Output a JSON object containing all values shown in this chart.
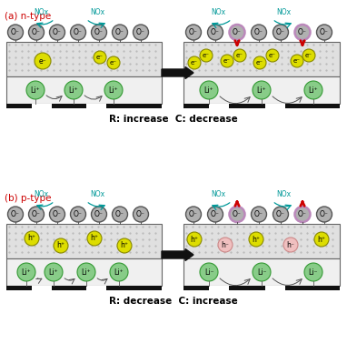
{
  "title_a": "(a) n-type",
  "title_b": "(b) p-type",
  "caption_a": "R: increase  C: decrease",
  "caption_b": "R: decrease  C: increase",
  "nox_color": "#009999",
  "o_circle_fc": "#b0b0b0",
  "o_circle_ec": "#555555",
  "o_highlight_ec": "#bb88bb",
  "e_circle_fc": "#dddd00",
  "e_circle_ec": "#888800",
  "h_circle_fc": "#dddd00",
  "h_circle_ec": "#888800",
  "h_faded_fc": "#f0c0c0",
  "h_faded_ec": "#cc8888",
  "li_circle_fc": "#88cc88",
  "li_circle_ec": "#339933",
  "red_color": "#cc0000",
  "label_color": "#cc0000",
  "box_upper_fc": "#e0e0e0",
  "box_lower_fc": "#f0f0f0",
  "box_ec": "#666666",
  "bar_fc": "#111111",
  "arrow_big_fc": "#111111",
  "bg_color": "#ffffff",
  "black": "#000000",
  "gray_arrow": "#555555"
}
